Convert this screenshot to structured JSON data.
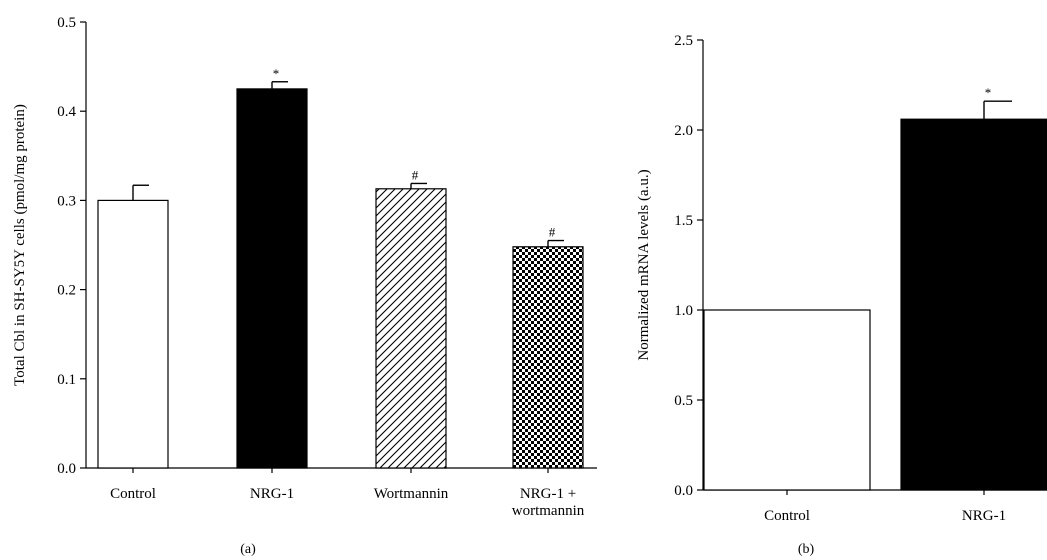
{
  "chart_data": [
    {
      "panel": "(a)",
      "type": "bar",
      "categories": [
        [
          "Control"
        ],
        [
          "NRG-1"
        ],
        [
          "Wortmannin"
        ],
        [
          "NRG-1 +",
          "wortmannin"
        ]
      ],
      "values": [
        0.3,
        0.425,
        0.313,
        0.248
      ],
      "errors": [
        0.017,
        0.008,
        0.006,
        0.007
      ],
      "annotations": [
        "",
        "*",
        "#",
        "#"
      ],
      "fills": [
        "white",
        "black",
        "diagonal-hatch",
        "checkerboard"
      ],
      "ylabel": "Total Cbl in SH-SY5Y cells (pmol/mg protein)",
      "xlabel": "",
      "ylim": [
        0,
        0.5
      ],
      "yticks": [
        "0.0",
        "0.1",
        "0.2",
        "0.3",
        "0.4",
        "0.5"
      ]
    },
    {
      "panel": "(b)",
      "type": "bar",
      "categories": [
        [
          "Control"
        ],
        [
          "NRG-1"
        ]
      ],
      "values": [
        1.0,
        2.06
      ],
      "errors": [
        0,
        0.1
      ],
      "annotations": [
        "",
        "*"
      ],
      "fills": [
        "white",
        "black"
      ],
      "ylabel": "Normalized mRNA levels (a.u.)",
      "xlabel": "",
      "ylim": [
        0,
        2.5
      ],
      "yticks": [
        "0.0",
        "0.5",
        "1.0",
        "1.5",
        "2.0",
        "2.5"
      ]
    }
  ],
  "colors": {
    "ink": "#000000",
    "paper": "#ffffff"
  }
}
